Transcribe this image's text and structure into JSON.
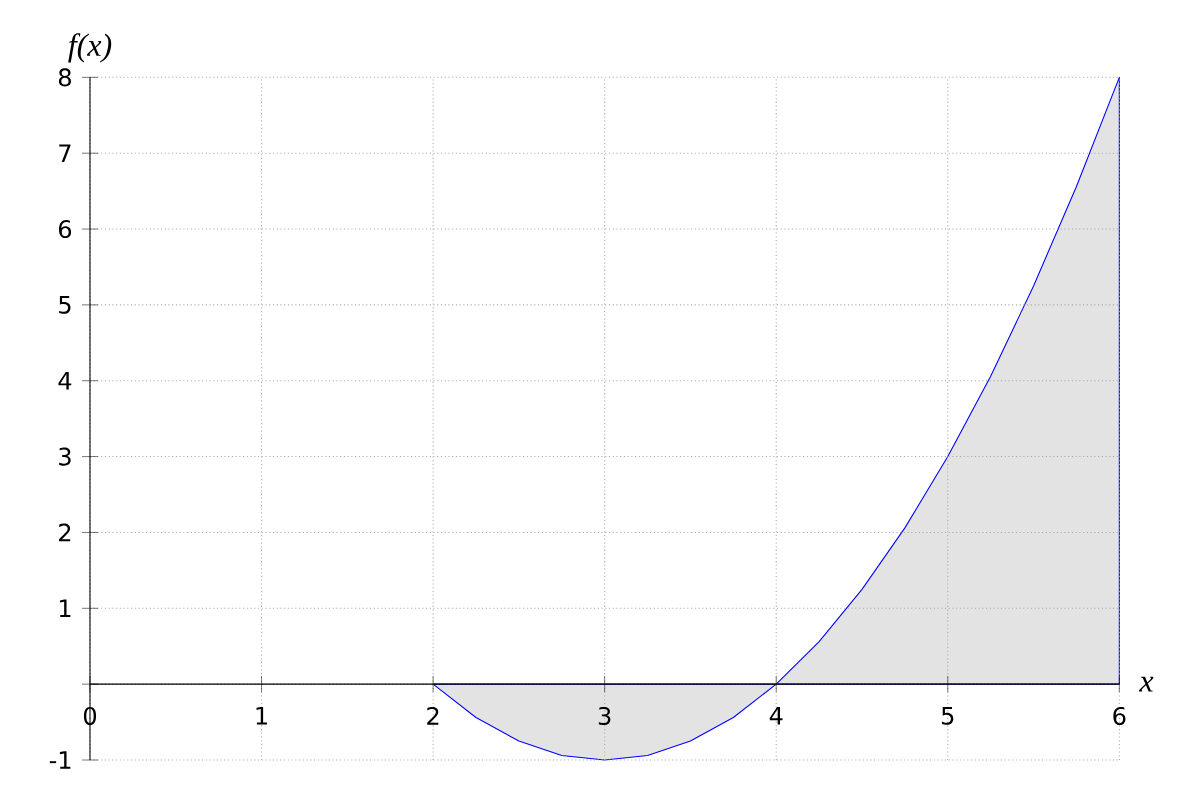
{
  "chart_data": {
    "type": "area",
    "xlabel": "x",
    "ylabel": "f(x)",
    "x": [
      2,
      2.25,
      2.5,
      2.75,
      3,
      3.25,
      3.5,
      3.75,
      4,
      4.25,
      4.5,
      4.75,
      5,
      5.25,
      5.5,
      5.75,
      6
    ],
    "values": [
      0,
      -0.44,
      -0.75,
      -0.94,
      -1,
      -0.94,
      -0.75,
      -0.44,
      0,
      0.56,
      1.25,
      2.06,
      3,
      4.06,
      5.25,
      6.56,
      8
    ],
    "color": "#0000ff",
    "xlim": [
      0,
      6
    ],
    "ylim": [
      -1,
      8
    ],
    "xticks": [
      0,
      1,
      2,
      3,
      4,
      5,
      6
    ],
    "yticks": [
      -1,
      {
        "value": 0,
        "label": null
      },
      1,
      2,
      3,
      4,
      5,
      6,
      7,
      8
    ],
    "grid": true
  }
}
